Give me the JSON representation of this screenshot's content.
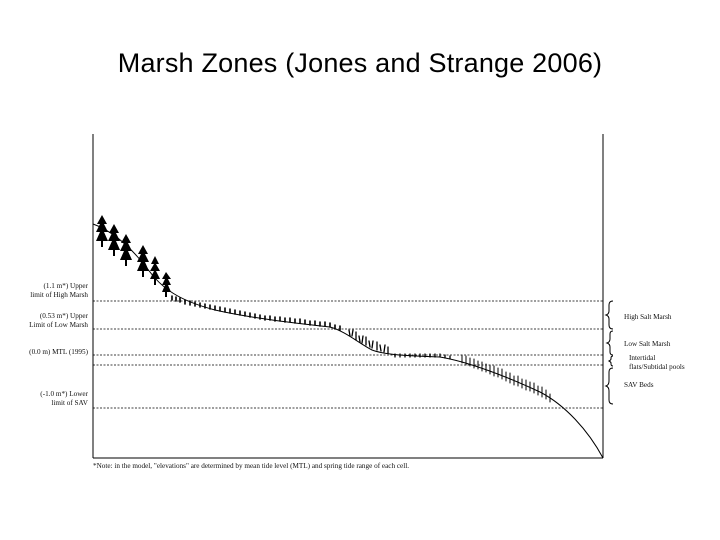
{
  "title": "Marsh Zones  (Jones and Strange 2006)",
  "left_labels": [
    {
      "line1": "(1.1 m*) Upper",
      "line2": "limit of High Marsh"
    },
    {
      "line1": "(0.53 m*) Upper",
      "line2": "Limit of Low Marsh"
    },
    {
      "line1": "(0.0 m) MTL (1995)",
      "line2": ""
    },
    {
      "line1": "(-1.0 m*) Lower",
      "line2": "limit of SAV"
    }
  ],
  "right_labels": {
    "high_salt_marsh": "High Salt Marsh",
    "low_salt_marsh": "Low Salt Marsh",
    "intertidal_line1": "Intertidal",
    "intertidal_line2": "flats/Subtidal pools",
    "sav_beds": "SAV Beds"
  },
  "note": "*Note: in the model, \"elevations\" are determined by mean tide level (MTL) and spring tide range of each cell."
}
